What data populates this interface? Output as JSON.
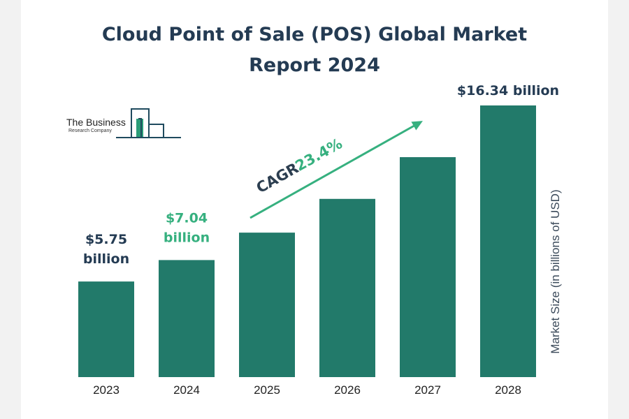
{
  "page": {
    "title_line1": "Cloud Point of Sale (POS) Global Market",
    "title_line2": "Report 2024"
  },
  "logo": {
    "name": "The Business",
    "subtitle": "Research Company"
  },
  "colors": {
    "bar": "#227a6a",
    "title": "#243b53",
    "highlight": "#36b07f",
    "cagr_text": "#2c3e50"
  },
  "chart_data": {
    "type": "bar",
    "title": "Cloud Point of Sale (POS) Global Market Report 2024",
    "categories": [
      "2023",
      "2024",
      "2025",
      "2026",
      "2027",
      "2028"
    ],
    "values": [
      5.75,
      7.04,
      8.69,
      10.72,
      13.23,
      16.34
    ],
    "ylabel": "Market Size (in billions of USD)",
    "xlabel": "",
    "ylim": [
      0,
      16.34
    ],
    "unit": "billions of USD",
    "data_labels": [
      {
        "index": 0,
        "line1": "$5.75",
        "line2": "billion"
      },
      {
        "index": 1,
        "line1": "$7.04",
        "line2": "billion"
      },
      {
        "index": 5,
        "line1": "$16.34 billion",
        "line2": ""
      }
    ],
    "annotation": {
      "label": "CAGR",
      "value": "23.4%",
      "from_index": 2,
      "to_index": 5
    },
    "grid": false,
    "legend": "none"
  }
}
